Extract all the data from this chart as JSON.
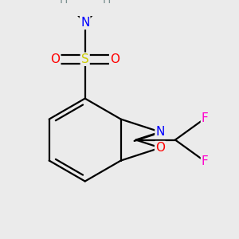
{
  "background_color": "#ebebeb",
  "atom_colors": {
    "C": "#000000",
    "H": "#7a9090",
    "N": "#0000ff",
    "O": "#ff0000",
    "S": "#cccc00",
    "F": "#ff00cc"
  },
  "bond_color": "#000000",
  "bond_width": 1.6,
  "figsize": [
    3.0,
    3.0
  ],
  "dpi": 100,
  "xlim": [
    -0.6,
    1.1
  ],
  "ylim": [
    -0.85,
    0.75
  ]
}
